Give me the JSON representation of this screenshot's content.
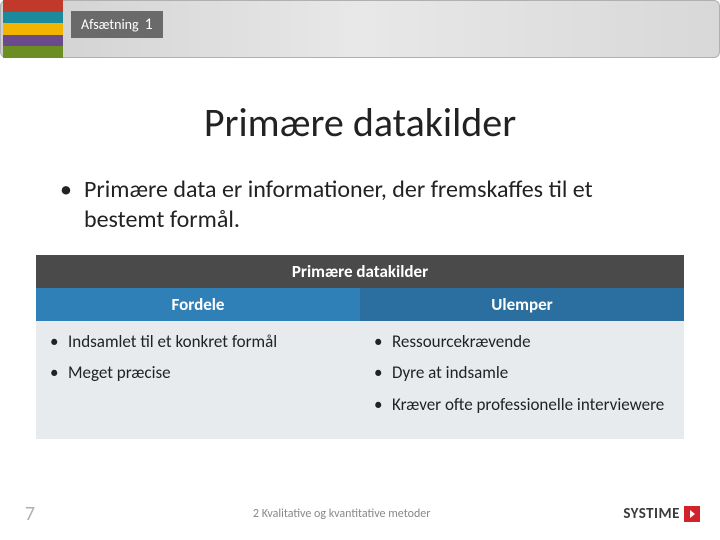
{
  "header": {
    "label_text": "Afsætning",
    "label_number": "1",
    "stripe_colors": [
      "#c0392b",
      "#1b8a9c",
      "#f1b400",
      "#6b4a8c",
      "#6b8e23"
    ]
  },
  "slide": {
    "title": "Primære datakilder",
    "body": "Primære data er informationer, der fremskaffes til et bestemt formål."
  },
  "table": {
    "title": "Primære datakilder",
    "title_bg": "#4a4a4a",
    "columns": [
      {
        "header": "Fordele",
        "header_bg": "#2f80b7",
        "items": [
          "Indsamlet til et konkret formål",
          "Meget præcise"
        ]
      },
      {
        "header": "Ulemper",
        "header_bg": "#2a6fa0",
        "items": [
          "Ressourcekrævende",
          "Dyre at indsamle",
          "Kræver ofte professionelle interviewere"
        ]
      }
    ],
    "body_bg": "#e8ebee"
  },
  "footer": {
    "page_number": "7",
    "chapter": "2 Kvalitative og kvantitative metoder",
    "logo_text": "SYSTIME",
    "logo_accent": "#d2232a"
  }
}
